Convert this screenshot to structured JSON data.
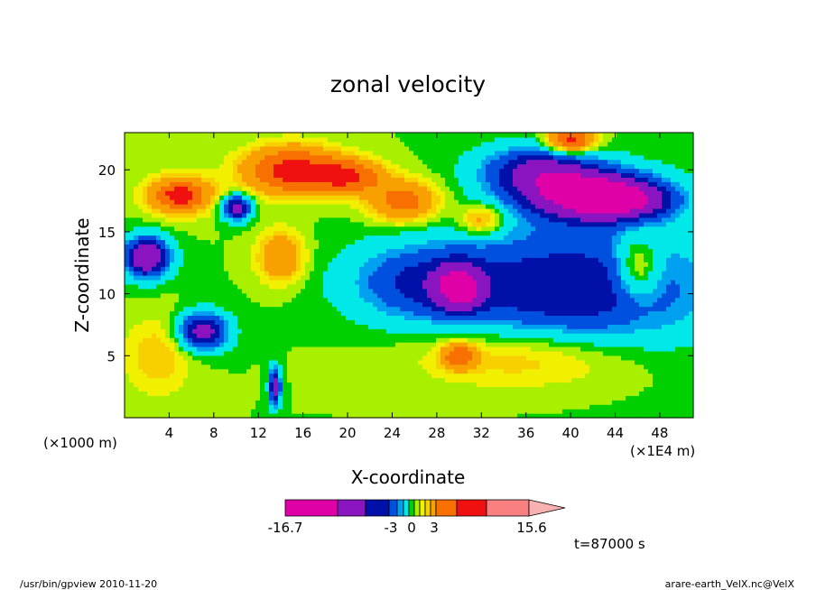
{
  "chart_data": {
    "type": "heatmap",
    "title": "zonal velocity",
    "xlabel": "X-coordinate",
    "ylabel": "Z-coordinate",
    "x_unit_left": "(×1000 m)",
    "x_unit_right": "(×1E4 m)",
    "xlim": [
      0,
      51
    ],
    "ylim": [
      0,
      23
    ],
    "x_ticks": [
      "4",
      "8",
      "12",
      "16",
      "20",
      "24",
      "28",
      "32",
      "36",
      "40",
      "44",
      "48"
    ],
    "y_ticks": [
      "5",
      "10",
      "15",
      "20"
    ],
    "colorbar": {
      "min_label": "-16.7",
      "max_label": "15.6",
      "labels": [
        "-16.7",
        "-3",
        "0",
        "3",
        "15.6"
      ],
      "colors": [
        "#e000a8",
        "#8a14c0",
        "#0010a8",
        "#0050e0",
        "#00a0f0",
        "#00e8e8",
        "#00d000",
        "#a8f000",
        "#f0f000",
        "#f8d000",
        "#f8a000",
        "#f87000",
        "#f01010",
        "#f88080"
      ],
      "extend_color": "#f8b0b0"
    },
    "blobs": [
      {
        "x": 5,
        "z": 18,
        "rx": 3,
        "rz": 1.5,
        "v": 8
      },
      {
        "x": 5,
        "z": 18,
        "rx": 1.5,
        "rz": 0.8,
        "v": 6
      },
      {
        "x": 15,
        "z": 20,
        "rx": 4,
        "rz": 1.8,
        "v": 12
      },
      {
        "x": 20,
        "z": 19.5,
        "rx": 3,
        "rz": 1.3,
        "v": 10
      },
      {
        "x": 25,
        "z": 17.5,
        "rx": 3,
        "rz": 1.6,
        "v": 8
      },
      {
        "x": 32,
        "z": 16,
        "rx": 2,
        "rz": 1.2,
        "v": 5
      },
      {
        "x": 42,
        "z": 18,
        "rx": 6,
        "rz": 2,
        "v": -14
      },
      {
        "x": 45,
        "z": 17.5,
        "rx": 4,
        "rz": 1.3,
        "v": -6
      },
      {
        "x": 37,
        "z": 20,
        "rx": 5,
        "rz": 2,
        "v": -8
      },
      {
        "x": 40,
        "z": 22.5,
        "rx": 2,
        "rz": 1,
        "v": 12
      },
      {
        "x": 10,
        "z": 17,
        "rx": 1.3,
        "rz": 1,
        "v": -10
      },
      {
        "x": 26,
        "z": 11,
        "rx": 6,
        "rz": 3,
        "v": -5
      },
      {
        "x": 30,
        "z": 10.5,
        "rx": 2,
        "rz": 1.8,
        "v": -10
      },
      {
        "x": 2,
        "z": 13,
        "rx": 2,
        "rz": 1.6,
        "v": -12
      },
      {
        "x": 7,
        "z": 7,
        "rx": 2.2,
        "rz": 1.5,
        "v": -10
      },
      {
        "x": 13.5,
        "z": 2.5,
        "rx": 0.5,
        "rz": 1.5,
        "v": -10
      },
      {
        "x": 14,
        "z": 13,
        "rx": 2,
        "rz": 2,
        "v": 6
      },
      {
        "x": 40,
        "z": 10.5,
        "rx": 12,
        "rz": 5,
        "v": -8
      },
      {
        "x": 46,
        "z": 12,
        "rx": 2,
        "rz": 2.5,
        "v": 6
      },
      {
        "x": 30,
        "z": 5,
        "rx": 1.5,
        "rz": 1,
        "v": 8
      },
      {
        "x": 36,
        "z": 5,
        "rx": 10,
        "rz": 2.5,
        "v": 4
      },
      {
        "x": 3,
        "z": 5,
        "rx": 3,
        "rz": 3,
        "v": 3
      }
    ],
    "background_value": 0
  },
  "annotations": {
    "time": "t=87000 s",
    "footer_left": "/usr/bin/gpview  2010-11-20",
    "footer_right": "arare-earth_VelX.nc@VelX"
  }
}
